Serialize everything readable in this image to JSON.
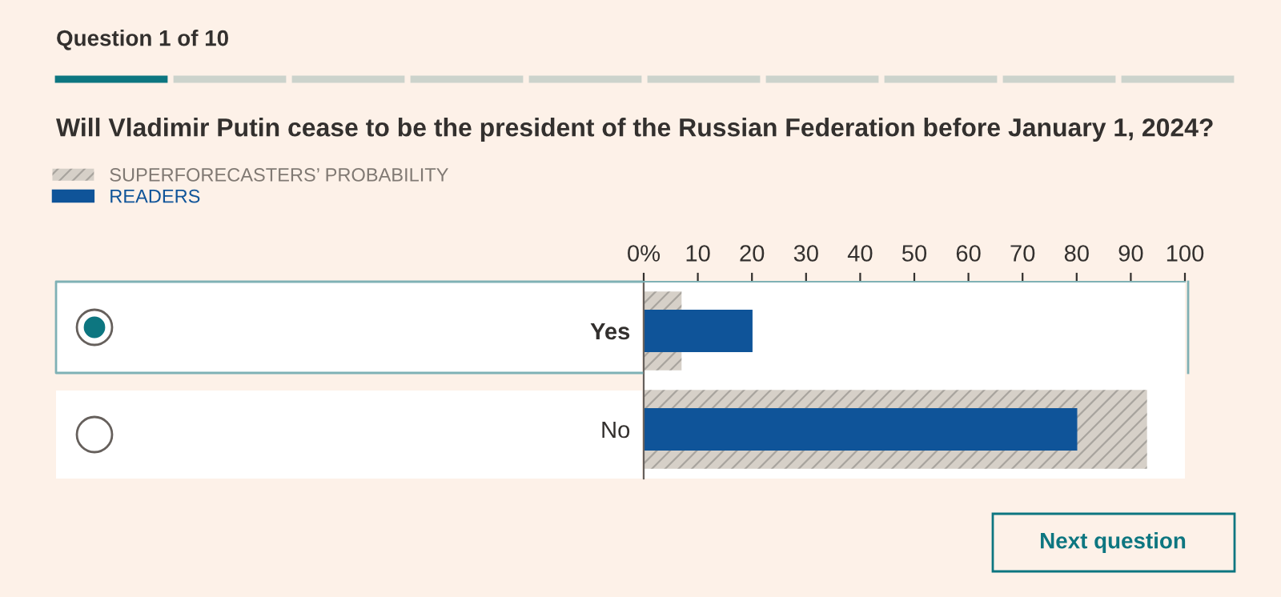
{
  "chart_data": {
    "type": "bar",
    "orientation": "horizontal",
    "title": "Will Vladimir Putin cease to be the president of the Russian Federation before January 1, 2024?",
    "subtitle": "Question 1 of 10",
    "annotations": [
      "Next question"
    ],
    "categories": [
      "Yes",
      "No"
    ],
    "series": [
      {
        "name": "SUPERFORECASTERS’ PROBABILITY",
        "color": "#d6d0c8",
        "values": [
          7,
          93
        ]
      },
      {
        "name": "READERS",
        "color": "#0f5499",
        "values": [
          20,
          80
        ]
      }
    ],
    "xlim": [
      0,
      100
    ],
    "xticks": [
      {
        "value": 0,
        "label": "0%"
      },
      10,
      20,
      30,
      40,
      50,
      60,
      70,
      80,
      90,
      100
    ],
    "grid": false,
    "legend": "top left"
  }
}
